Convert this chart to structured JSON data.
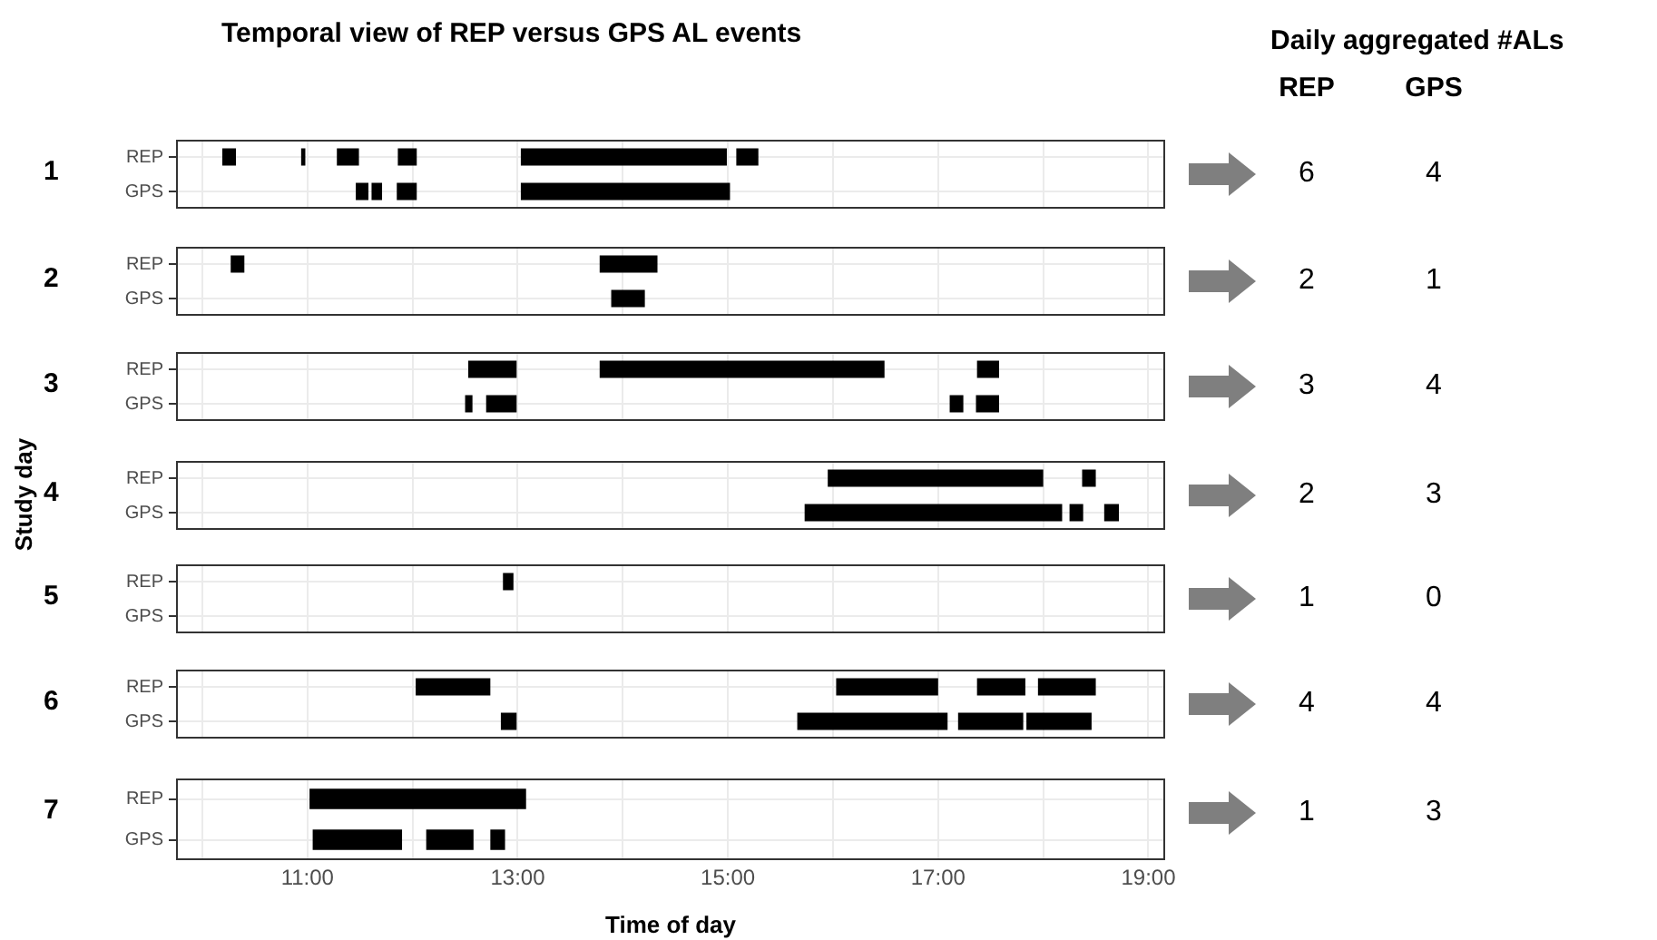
{
  "chart_data": [
    {
      "type": "bar",
      "orientation": "horizontal",
      "title": "Temporal view of REP versus GPS AL events",
      "ylabel": "1",
      "categories": [
        "REP",
        "GPS"
      ],
      "series": [
        {
          "color": "#000000",
          "base": [
            10.19,
            11.46
          ],
          "values": [
            0.13,
            0.12
          ]
        },
        {
          "color": "#000000",
          "base": [
            10.94,
            11.61
          ],
          "values": [
            0.04,
            0.1
          ]
        },
        {
          "color": "#000000",
          "base": [
            11.28,
            11.85
          ],
          "values": [
            0.21,
            0.19
          ]
        },
        {
          "color": "#000000",
          "base": [
            11.86,
            13.03
          ],
          "values": [
            0.18,
            1.99
          ]
        },
        {
          "color": "#000000",
          "base": [
            13.03,
            null
          ],
          "values": [
            1.96,
            null
          ]
        },
        {
          "color": "#000000",
          "base": [
            15.08,
            null
          ],
          "values": [
            0.21,
            null
          ]
        }
      ],
      "xlim": [
        9.75,
        19.16
      ],
      "xticks": [
        {
          "value": 10,
          "label": null
        },
        {
          "value": 11,
          "label": null
        },
        {
          "value": 12,
          "label": null
        },
        {
          "value": 13,
          "label": null
        },
        {
          "value": 14,
          "label": null
        },
        {
          "value": 15,
          "label": null
        },
        {
          "value": 16,
          "label": null
        },
        {
          "value": 17,
          "label": null
        },
        {
          "value": 18,
          "label": null
        },
        {
          "value": 19,
          "label": null
        }
      ],
      "grid": true,
      "tick_labels": "y"
    },
    {
      "type": "bar",
      "orientation": "horizontal",
      "ylabel": "2",
      "categories": [
        "REP",
        "GPS"
      ],
      "series": [
        {
          "color": "#000000",
          "base": [
            10.27,
            13.89
          ],
          "values": [
            0.13,
            0.32
          ]
        },
        {
          "color": "#000000",
          "base": [
            13.78,
            null
          ],
          "values": [
            0.55,
            null
          ]
        }
      ],
      "xlim": [
        9.75,
        19.16
      ],
      "xticks": [
        {
          "value": 10,
          "label": null
        },
        {
          "value": 11,
          "label": null
        },
        {
          "value": 12,
          "label": null
        },
        {
          "value": 13,
          "label": null
        },
        {
          "value": 14,
          "label": null
        },
        {
          "value": 15,
          "label": null
        },
        {
          "value": 16,
          "label": null
        },
        {
          "value": 17,
          "label": null
        },
        {
          "value": 18,
          "label": null
        },
        {
          "value": 19,
          "label": null
        }
      ],
      "grid": true,
      "tick_labels": "y"
    },
    {
      "type": "bar",
      "orientation": "horizontal",
      "ylabel": "3",
      "categories": [
        "REP",
        "GPS"
      ],
      "series": [
        {
          "color": "#000000",
          "base": [
            12.53,
            12.5
          ],
          "values": [
            0.46,
            0.07
          ]
        },
        {
          "color": "#000000",
          "base": [
            13.78,
            12.7
          ],
          "values": [
            2.71,
            0.29
          ]
        },
        {
          "color": "#000000",
          "base": [
            17.37,
            17.11
          ],
          "values": [
            0.21,
            0.13
          ]
        },
        {
          "color": "#000000",
          "base": [
            null,
            17.36
          ],
          "values": [
            null,
            0.22
          ]
        }
      ],
      "xlim": [
        9.75,
        19.16
      ],
      "xticks": [
        {
          "value": 10,
          "label": null
        },
        {
          "value": 11,
          "label": null
        },
        {
          "value": 12,
          "label": null
        },
        {
          "value": 13,
          "label": null
        },
        {
          "value": 14,
          "label": null
        },
        {
          "value": 15,
          "label": null
        },
        {
          "value": 16,
          "label": null
        },
        {
          "value": 17,
          "label": null
        },
        {
          "value": 18,
          "label": null
        },
        {
          "value": 19,
          "label": null
        }
      ],
      "grid": true,
      "tick_labels": "y"
    },
    {
      "type": "bar",
      "orientation": "horizontal",
      "ylabel": "4",
      "annotations": [
        "Study day"
      ],
      "categories": [
        "REP",
        "GPS"
      ],
      "series": [
        {
          "color": "#000000",
          "base": [
            15.95,
            15.73
          ],
          "values": [
            2.05,
            2.45
          ]
        },
        {
          "color": "#000000",
          "base": [
            18.37,
            18.25
          ],
          "values": [
            0.13,
            0.13
          ]
        },
        {
          "color": "#000000",
          "base": [
            null,
            18.58
          ],
          "values": [
            null,
            0.14
          ]
        }
      ],
      "xlim": [
        9.75,
        19.16
      ],
      "xticks": [
        {
          "value": 10,
          "label": null
        },
        {
          "value": 11,
          "label": null
        },
        {
          "value": 12,
          "label": null
        },
        {
          "value": 13,
          "label": null
        },
        {
          "value": 14,
          "label": null
        },
        {
          "value": 15,
          "label": null
        },
        {
          "value": 16,
          "label": null
        },
        {
          "value": 17,
          "label": null
        },
        {
          "value": 18,
          "label": null
        },
        {
          "value": 19,
          "label": null
        }
      ],
      "grid": true,
      "tick_labels": "y"
    },
    {
      "type": "bar",
      "orientation": "horizontal",
      "ylabel": "5",
      "categories": [
        "REP",
        "GPS"
      ],
      "series": [
        {
          "color": "#000000",
          "base": [
            12.86,
            null
          ],
          "values": [
            0.1,
            null
          ]
        }
      ],
      "xlim": [
        9.75,
        19.16
      ],
      "xticks": [
        {
          "value": 10,
          "label": null
        },
        {
          "value": 11,
          "label": null
        },
        {
          "value": 12,
          "label": null
        },
        {
          "value": 13,
          "label": null
        },
        {
          "value": 14,
          "label": null
        },
        {
          "value": 15,
          "label": null
        },
        {
          "value": 16,
          "label": null
        },
        {
          "value": 17,
          "label": null
        },
        {
          "value": 18,
          "label": null
        },
        {
          "value": 19,
          "label": null
        }
      ],
      "grid": true,
      "tick_labels": "y"
    },
    {
      "type": "bar",
      "orientation": "horizontal",
      "ylabel": "6",
      "categories": [
        "REP",
        "GPS"
      ],
      "series": [
        {
          "color": "#000000",
          "base": [
            12.03,
            12.84
          ],
          "values": [
            0.71,
            0.15
          ]
        },
        {
          "color": "#000000",
          "base": [
            16.03,
            15.66
          ],
          "values": [
            0.97,
            1.43
          ]
        },
        {
          "color": "#000000",
          "base": [
            17.37,
            17.19
          ],
          "values": [
            0.46,
            0.62
          ]
        },
        {
          "color": "#000000",
          "base": [
            17.95,
            17.84
          ],
          "values": [
            0.55,
            0.62
          ]
        }
      ],
      "xlim": [
        9.75,
        19.16
      ],
      "xticks": [
        {
          "value": 10,
          "label": null
        },
        {
          "value": 11,
          "label": null
        },
        {
          "value": 12,
          "label": null
        },
        {
          "value": 13,
          "label": null
        },
        {
          "value": 14,
          "label": null
        },
        {
          "value": 15,
          "label": null
        },
        {
          "value": 16,
          "label": null
        },
        {
          "value": 17,
          "label": null
        },
        {
          "value": 18,
          "label": null
        },
        {
          "value": 19,
          "label": null
        }
      ],
      "grid": true,
      "tick_labels": "y"
    },
    {
      "type": "bar",
      "orientation": "horizontal",
      "ylabel": "7",
      "xlabel": "Time of day",
      "categories": [
        "REP",
        "GPS"
      ],
      "series": [
        {
          "color": "#000000",
          "base": [
            11.02,
            11.05
          ],
          "values": [
            2.06,
            0.85
          ]
        },
        {
          "color": "#000000",
          "base": [
            null,
            12.13
          ],
          "values": [
            null,
            0.45
          ]
        },
        {
          "color": "#000000",
          "base": [
            null,
            12.74
          ],
          "values": [
            null,
            0.14
          ]
        }
      ],
      "xlim": [
        9.75,
        19.16
      ],
      "xticks": [
        {
          "value": 10,
          "label": null
        },
        {
          "value": 11,
          "label": "11:00"
        },
        {
          "value": 12,
          "label": null
        },
        {
          "value": 13,
          "label": "13:00"
        },
        {
          "value": 14,
          "label": null
        },
        {
          "value": 15,
          "label": "15:00"
        },
        {
          "value": 16,
          "label": null
        },
        {
          "value": 17,
          "label": "17:00"
        },
        {
          "value": 18,
          "label": null
        },
        {
          "value": 19,
          "label": "19:00"
        }
      ],
      "grid": true
    },
    {
      "type": "other",
      "title": "Daily aggregated #ALs",
      "annotations": [
        "REP",
        "GPS",
        "6",
        "4",
        "2",
        "1",
        "3",
        "4",
        "2",
        "3",
        "1",
        "0",
        "4",
        "4",
        "1",
        "3"
      ]
    }
  ]
}
